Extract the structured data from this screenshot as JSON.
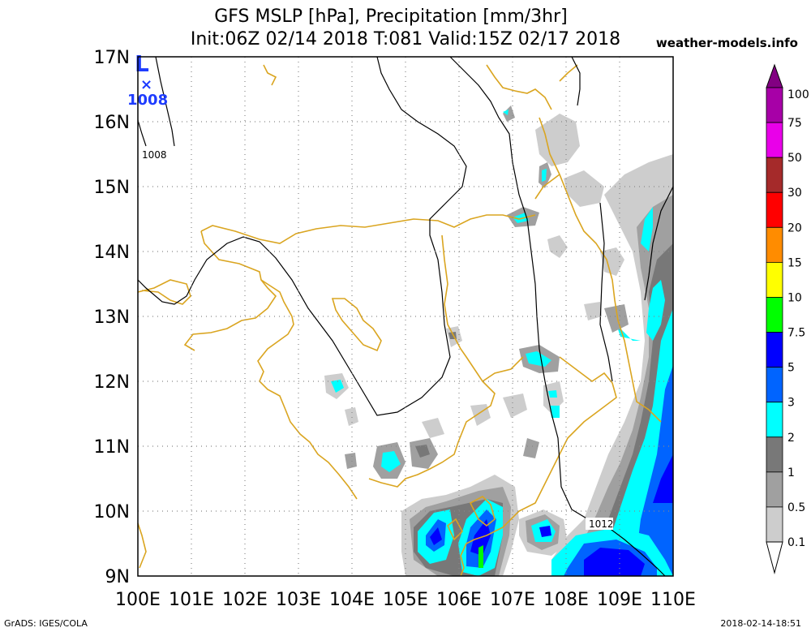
{
  "title": {
    "line1": "GFS MSLP [hPa], Precipitation [mm/3hr]",
    "line2": "Init:06Z 02/14 2018 T:081 Valid:15Z 02/17 2018",
    "site": "weather-models.info"
  },
  "footer": {
    "left": "GrADS: IGES/COLA",
    "right": "2018-02-14-18:51"
  },
  "axes": {
    "lat_labels": [
      "17N",
      "16N",
      "15N",
      "14N",
      "13N",
      "12N",
      "11N",
      "10N",
      "9N"
    ],
    "lon_labels": [
      "100E",
      "101E",
      "102E",
      "103E",
      "104E",
      "105E",
      "106E",
      "107E",
      "108E",
      "109E",
      "110E"
    ]
  },
  "isobars": {
    "label_a": "1008",
    "label_b": "1012"
  },
  "low_marker": {
    "letter": "L",
    "value": "1008"
  },
  "legend": {
    "labels": [
      "100",
      "75",
      "50",
      "30",
      "20",
      "15",
      "10",
      "7.5",
      "5",
      "3",
      "2",
      "1",
      "0.5",
      "0.1"
    ],
    "colors": [
      "#820082",
      "#a700a7",
      "#e900e9",
      "#a52a2a",
      "#ff0000",
      "#ff8c00",
      "#ffff00",
      "#00ff00",
      "#0000ff",
      "#0064ff",
      "#00ffff",
      "#787878",
      "#a0a0a0",
      "#cdcdcd",
      "#ffffff"
    ]
  },
  "colors": {
    "coast": "#daa520",
    "isobar": "#000000",
    "low": "#1e3cff",
    "grid": "#888888"
  }
}
